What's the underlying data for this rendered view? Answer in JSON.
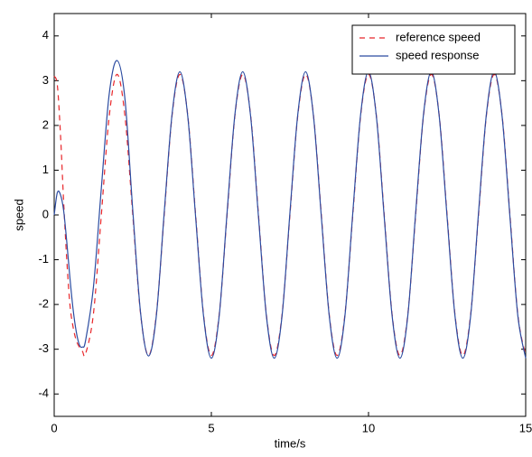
{
  "chart_data": {
    "type": "line",
    "xlabel": "time/s",
    "ylabel": "speed",
    "x": [
      0,
      0.1,
      0.2,
      0.3,
      0.4,
      0.5,
      0.6,
      0.7,
      0.8,
      0.9,
      1.0,
      1.25,
      1.5,
      1.75,
      2,
      2.25,
      2.5,
      2.75,
      3,
      3.25,
      3.5,
      3.75,
      4,
      4.25,
      4.5,
      4.75,
      5,
      5.25,
      5.5,
      5.75,
      6,
      6.25,
      6.5,
      6.75,
      7,
      7.25,
      7.5,
      7.75,
      8,
      8.25,
      8.5,
      8.75,
      9,
      9.25,
      9.5,
      9.75,
      10,
      10.25,
      10.5,
      10.75,
      11,
      11.25,
      11.5,
      11.75,
      12,
      12.25,
      12.5,
      12.75,
      13,
      13.25,
      13.5,
      13.75,
      14,
      14.25,
      14.5,
      14.75,
      15
    ],
    "series": [
      {
        "name": "reference speed",
        "color": "#e8262a",
        "dash": "6,5",
        "values": [
          3.1,
          2.9,
          1.8,
          0.3,
          -1.0,
          -2.0,
          -2.5,
          -2.8,
          -2.95,
          -3.05,
          -3.1,
          -2.2,
          0,
          2.2,
          3.14,
          2.22,
          0,
          -2.22,
          -3.14,
          -2.22,
          0,
          2.22,
          3.14,
          2.22,
          0,
          -2.22,
          -3.14,
          -2.22,
          0,
          2.22,
          3.14,
          2.22,
          0,
          -2.22,
          -3.14,
          -2.22,
          0,
          2.22,
          3.14,
          2.22,
          0,
          -2.22,
          -3.14,
          -2.22,
          0,
          2.22,
          3.14,
          2.22,
          0,
          -2.22,
          -3.14,
          -2.22,
          0,
          2.22,
          3.14,
          2.22,
          0,
          -2.22,
          -3.14,
          -2.22,
          0,
          2.22,
          3.14,
          2.22,
          0,
          -2.22,
          -3.14
        ]
      },
      {
        "name": "speed response",
        "color": "#2b4ba0",
        "dash": null,
        "values": [
          0,
          0.5,
          0.45,
          0.1,
          -0.6,
          -1.4,
          -2.1,
          -2.6,
          -2.9,
          -2.95,
          -2.8,
          -1.6,
          0.6,
          2.7,
          3.45,
          2.6,
          0.1,
          -2.2,
          -3.15,
          -2.25,
          0.05,
          2.25,
          3.2,
          2.2,
          -0.05,
          -2.25,
          -3.2,
          -2.25,
          0.05,
          2.25,
          3.2,
          2.2,
          -0.05,
          -2.25,
          -3.2,
          -2.25,
          0.05,
          2.25,
          3.2,
          2.2,
          -0.05,
          -2.25,
          -3.2,
          -2.25,
          0.05,
          2.25,
          3.2,
          2.2,
          -0.05,
          -2.25,
          -3.2,
          -2.25,
          0.05,
          2.25,
          3.2,
          2.2,
          -0.05,
          -2.25,
          -3.2,
          -2.25,
          0.05,
          2.25,
          3.2,
          2.2,
          -0.05,
          -2.25,
          -3.2
        ]
      }
    ],
    "xlim": [
      0,
      15
    ],
    "xticks": [
      0,
      5,
      10,
      15
    ],
    "ylim": [
      -4.5,
      4.5
    ],
    "yticks": [
      -4,
      -3,
      -2,
      -1,
      0,
      1,
      2,
      3,
      4
    ],
    "legend": "top-right",
    "grid": false
  }
}
